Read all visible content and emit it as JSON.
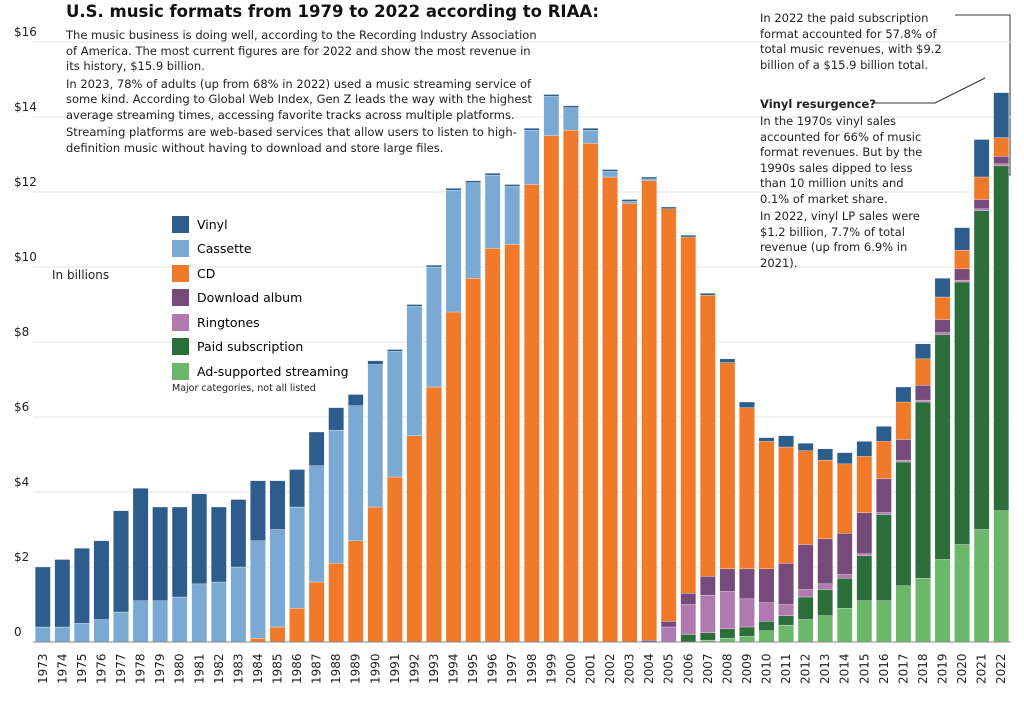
{
  "chart_data": {
    "type": "bar",
    "stacked": true,
    "title": "U.S. music formats from 1979 to 2022 according to RIAA:",
    "paragraphs": [
      "The music business is doing well, according to the Recording Industry Association of America. The most current figures are for 2022 and show the most revenue in its history, $15.9 billion.",
      "In 2023, 78% of adults (up from 68% in 2022) used a music streaming service of some kind. According to Global Web Index, Gen Z leads the way with the highest average streaming times, accessing favorite tracks across multiple platforms.",
      "Streaming platforms are web-based services that allow users to listen to high-definition music without having to download and store large files."
    ],
    "y_label": "In billions",
    "legend_note": "Major categories, not all listed",
    "annotation_subscription": "In 2022 the paid subscription format accounted for 57.8% of total music revenues, with $9.2 billion of a $15.9 billion total.",
    "annotation_vinyl_title": "Vinyl resurgence?",
    "annotation_vinyl": [
      "In the 1970s vinyl sales accounted for 66% of music format revenues. But by the 1990s sales dipped to less than 10 million units and 0.1% of market share.",
      "In 2022, vinyl LP sales were $1.2 billion, 7.7% of total revenue (up from 6.9% in 2021)."
    ],
    "categories": [
      "1973",
      "1974",
      "1975",
      "1976",
      "1977",
      "1978",
      "1979",
      "1980",
      "1981",
      "1982",
      "1983",
      "1984",
      "1985",
      "1986",
      "1987",
      "1988",
      "1989",
      "1990",
      "1991",
      "1992",
      "1993",
      "1994",
      "1995",
      "1996",
      "1997",
      "1998",
      "1999",
      "2000",
      "2001",
      "2002",
      "2003",
      "2004",
      "2005",
      "2006",
      "2007",
      "2008",
      "2009",
      "2010",
      "2011",
      "2012",
      "2013",
      "2014",
      "2015",
      "2016",
      "2017",
      "2018",
      "2019",
      "2020",
      "2021",
      "2022"
    ],
    "series": [
      {
        "name": "Vinyl",
        "color": "#2d5d8c",
        "values": [
          1.6,
          1.8,
          2.0,
          2.1,
          2.7,
          3.0,
          2.5,
          2.4,
          2.4,
          2.0,
          1.8,
          1.6,
          1.3,
          1.0,
          0.9,
          0.6,
          0.3,
          0.1,
          0.05,
          0.05,
          0.05,
          0.05,
          0.05,
          0.05,
          0.05,
          0.05,
          0.05,
          0.05,
          0.05,
          0.05,
          0.05,
          0.05,
          0.05,
          0.05,
          0.05,
          0.1,
          0.15,
          0.1,
          0.3,
          0.2,
          0.3,
          0.3,
          0.4,
          0.4,
          0.4,
          0.4,
          0.5,
          0.6,
          1.0,
          1.2
        ]
      },
      {
        "name": "Cassette",
        "color": "#7aaad3",
        "values": [
          0.4,
          0.4,
          0.5,
          0.6,
          0.8,
          1.1,
          1.1,
          1.2,
          1.55,
          1.6,
          2.0,
          2.6,
          2.6,
          2.7,
          3.1,
          3.55,
          3.6,
          3.8,
          3.35,
          3.45,
          3.2,
          3.25,
          2.55,
          1.95,
          1.55,
          1.45,
          1.05,
          0.6,
          0.35,
          0.15,
          0.05,
          0.05,
          0,
          0,
          0,
          0,
          0,
          0,
          0,
          0,
          0,
          0,
          0,
          0,
          0,
          0,
          0,
          0,
          0,
          0
        ]
      },
      {
        "name": "CD",
        "color": "#f07a2a",
        "values": [
          0,
          0,
          0,
          0,
          0,
          0,
          0,
          0,
          0,
          0,
          0,
          0.1,
          0.4,
          0.9,
          1.6,
          2.1,
          2.7,
          3.6,
          4.4,
          5.5,
          6.8,
          8.8,
          9.7,
          10.5,
          10.6,
          12.2,
          13.5,
          13.65,
          13.3,
          12.4,
          11.7,
          12.25,
          11.0,
          9.5,
          7.5,
          5.5,
          4.3,
          3.4,
          3.1,
          2.5,
          2.1,
          1.85,
          1.5,
          1.0,
          1.0,
          0.7,
          0.6,
          0.5,
          0.6,
          0.5
        ]
      },
      {
        "name": "Download album",
        "color": "#774a7c",
        "values": [
          0,
          0,
          0,
          0,
          0,
          0,
          0,
          0,
          0,
          0,
          0,
          0,
          0,
          0,
          0,
          0,
          0,
          0,
          0,
          0,
          0,
          0,
          0,
          0,
          0,
          0,
          0,
          0,
          0,
          0,
          0,
          0.05,
          0.15,
          0.3,
          0.5,
          0.6,
          0.8,
          0.9,
          1.1,
          1.2,
          1.2,
          1.1,
          1.1,
          0.9,
          0.55,
          0.4,
          0.35,
          0.3,
          0.25,
          0.2
        ]
      },
      {
        "name": "Ringtones",
        "color": "#b07ab0",
        "values": [
          0,
          0,
          0,
          0,
          0,
          0,
          0,
          0,
          0,
          0,
          0,
          0,
          0,
          0,
          0,
          0,
          0,
          0,
          0,
          0,
          0,
          0,
          0,
          0,
          0,
          0,
          0,
          0,
          0,
          0,
          0,
          0,
          0.4,
          0.8,
          1.0,
          1.0,
          0.75,
          0.5,
          0.3,
          0.2,
          0.15,
          0.1,
          0.05,
          0.05,
          0.05,
          0.05,
          0.05,
          0.05,
          0.05,
          0.05
        ]
      },
      {
        "name": "Paid subscription",
        "color": "#2c6e3a",
        "values": [
          0,
          0,
          0,
          0,
          0,
          0,
          0,
          0,
          0,
          0,
          0,
          0,
          0,
          0,
          0,
          0,
          0,
          0,
          0,
          0,
          0,
          0,
          0,
          0,
          0,
          0,
          0,
          0,
          0,
          0,
          0,
          0,
          0,
          0.2,
          0.2,
          0.25,
          0.25,
          0.25,
          0.25,
          0.6,
          0.7,
          0.8,
          1.2,
          2.3,
          3.3,
          4.7,
          6.0,
          7.0,
          8.5,
          9.2
        ]
      },
      {
        "name": "Ad-supported streaming",
        "color": "#6cb86a",
        "values": [
          0,
          0,
          0,
          0,
          0,
          0,
          0,
          0,
          0,
          0,
          0,
          0,
          0,
          0,
          0,
          0,
          0,
          0,
          0,
          0,
          0,
          0,
          0,
          0,
          0,
          0,
          0,
          0,
          0,
          0,
          0,
          0,
          0,
          0,
          0.05,
          0.1,
          0.15,
          0.3,
          0.45,
          0.6,
          0.7,
          0.9,
          1.1,
          1.1,
          1.5,
          1.7,
          2.2,
          2.6,
          3.0,
          3.5
        ]
      }
    ],
    "ylim": [
      0,
      16
    ],
    "yticks": [
      0,
      {
        "value": 2,
        "label": "$2"
      },
      {
        "value": 4,
        "label": "$4"
      },
      {
        "value": 6,
        "label": "$6"
      },
      {
        "value": 8,
        "label": "$8"
      },
      {
        "value": 10,
        "label": "$10"
      },
      {
        "value": 12,
        "label": "$12"
      },
      {
        "value": 14,
        "label": "$14"
      },
      {
        "value": 16,
        "label": "$16"
      }
    ],
    "grid": true
  }
}
